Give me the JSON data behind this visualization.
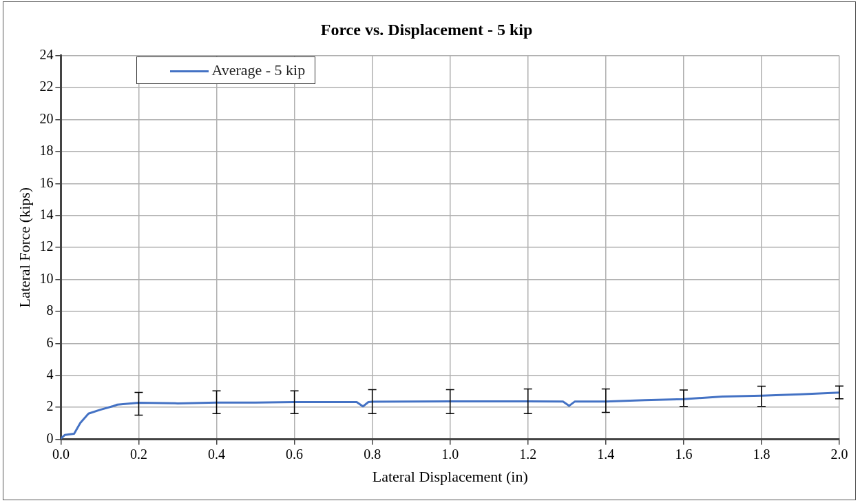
{
  "chart_data": {
    "type": "line",
    "title": "Force vs. Displacement - 5 kip",
    "xlabel": "Lateral Displacement (in)",
    "ylabel": "Lateral Force (kips)",
    "x": [
      0,
      0.01,
      0.034,
      0.05,
      0.071,
      0.1,
      0.132,
      0.145,
      0.2,
      0.3,
      0.4,
      0.5,
      0.6,
      0.7,
      0.76,
      0.776,
      0.79,
      0.8,
      0.9,
      1.0,
      1.1,
      1.2,
      1.29,
      1.306,
      1.32,
      1.4,
      1.5,
      1.6,
      1.7,
      1.8,
      1.9,
      2.0
    ],
    "series": [
      {
        "name": "Average - 5 kip",
        "color": "#4472c4",
        "values": [
          0.05,
          0.27,
          0.35,
          1.03,
          1.61,
          1.84,
          2.06,
          2.17,
          2.29,
          2.25,
          2.3,
          2.3,
          2.33,
          2.33,
          2.33,
          2.06,
          2.33,
          2.35,
          2.36,
          2.38,
          2.38,
          2.38,
          2.36,
          2.1,
          2.36,
          2.36,
          2.45,
          2.51,
          2.68,
          2.73,
          2.82,
          2.93
        ],
        "errors": [
          null,
          null,
          null,
          null,
          null,
          null,
          null,
          null,
          [
            1.51,
            2.93
          ],
          null,
          [
            1.61,
            3.03
          ],
          null,
          [
            1.61,
            3.03
          ],
          null,
          null,
          null,
          null,
          [
            1.61,
            3.11
          ],
          null,
          [
            1.61,
            3.11
          ],
          null,
          [
            1.61,
            3.15
          ],
          null,
          null,
          null,
          [
            1.69,
            3.15
          ],
          null,
          [
            2.06,
            3.09
          ],
          null,
          [
            2.06,
            3.32
          ],
          null,
          [
            2.54,
            3.33
          ]
        ]
      }
    ],
    "xlim": [
      0,
      2
    ],
    "xticks": [
      {
        "value": 0,
        "label": "0.0"
      },
      0.2,
      0.4,
      0.6,
      0.8,
      {
        "value": 1,
        "label": "1.0"
      },
      1.2,
      1.4,
      1.6,
      1.8,
      {
        "value": 2,
        "label": "2.0"
      }
    ],
    "ylim": [
      0,
      24
    ],
    "yticks": [
      0,
      2,
      4,
      6,
      8,
      10,
      12,
      14,
      16,
      18,
      20,
      22,
      24
    ],
    "grid": true,
    "legend": "top left",
    "marker": "none",
    "line_style": "solid"
  }
}
